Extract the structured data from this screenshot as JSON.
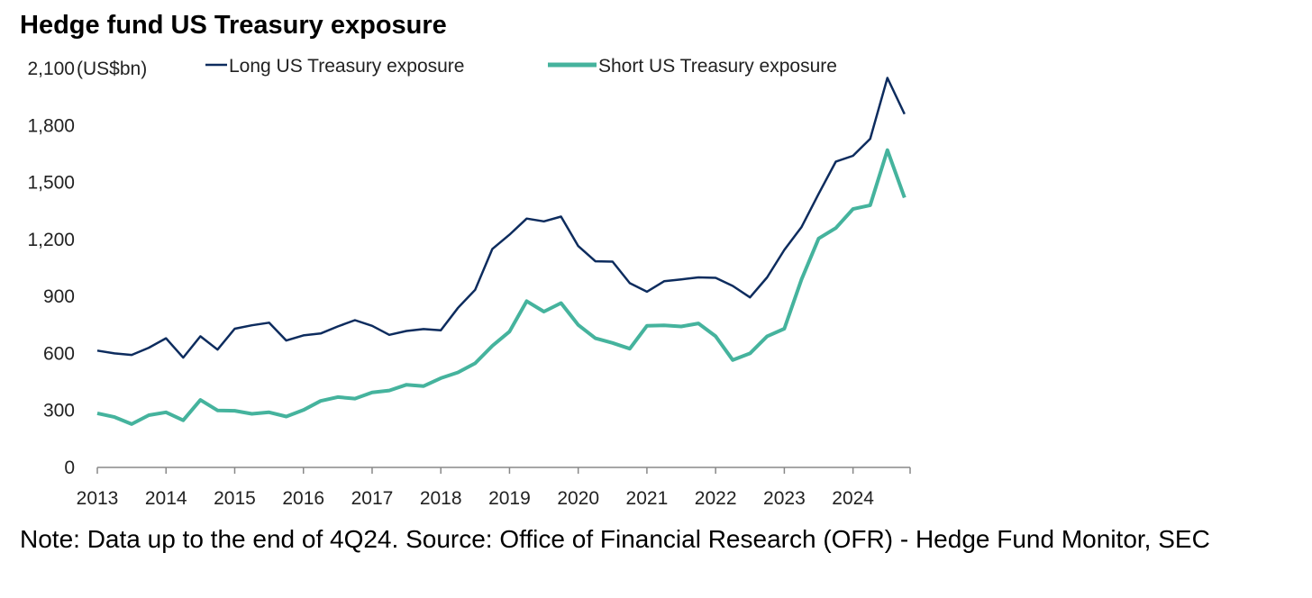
{
  "chart_data": {
    "type": "line",
    "title": "Hedge fund US Treasury exposure",
    "ylabel": "(US$bn)",
    "xlabel": "",
    "ylim": [
      0,
      2100
    ],
    "yticks": [
      "0",
      "300",
      "600",
      "900",
      "1,200",
      "1,500",
      "1,800",
      "2,100"
    ],
    "ytick_values": [
      0,
      300,
      600,
      900,
      1200,
      1500,
      1800,
      2100
    ],
    "xticks": [
      "2013",
      "2014",
      "2015",
      "2016",
      "2017",
      "2018",
      "2019",
      "2020",
      "2021",
      "2022",
      "2023",
      "2024"
    ],
    "x_frequency": "quarterly, 2013Q1-2024Q4",
    "grid": false,
    "legend_position": "top",
    "series": [
      {
        "name": "Long US Treasury exposure",
        "color": "#0d2c5e",
        "values": [
          615,
          600,
          592,
          630,
          680,
          578,
          690,
          620,
          730,
          748,
          762,
          668,
          695,
          705,
          742,
          775,
          745,
          698,
          718,
          728,
          722,
          840,
          935,
          1150,
          1225,
          1310,
          1295,
          1320,
          1165,
          1085,
          1083,
          970,
          925,
          980,
          990,
          1000,
          998,
          955,
          895,
          1000,
          1145,
          1265,
          1440,
          1610,
          1640,
          1730,
          2050,
          1860
        ]
      },
      {
        "name": "Short US Treasury exposure",
        "color": "#45b39d",
        "values": [
          285,
          265,
          228,
          275,
          290,
          248,
          355,
          300,
          298,
          282,
          290,
          268,
          302,
          350,
          370,
          362,
          395,
          405,
          435,
          428,
          470,
          500,
          548,
          640,
          715,
          875,
          820,
          865,
          750,
          680,
          655,
          625,
          745,
          748,
          742,
          758,
          690,
          565,
          600,
          690,
          730,
          990,
          1205,
          1260,
          1360,
          1380,
          1670,
          1420
        ]
      }
    ]
  },
  "note": "Note: Data up to the end of 4Q24. Source: Office of Financial Research (OFR) - Hedge Fund Monitor, SEC"
}
